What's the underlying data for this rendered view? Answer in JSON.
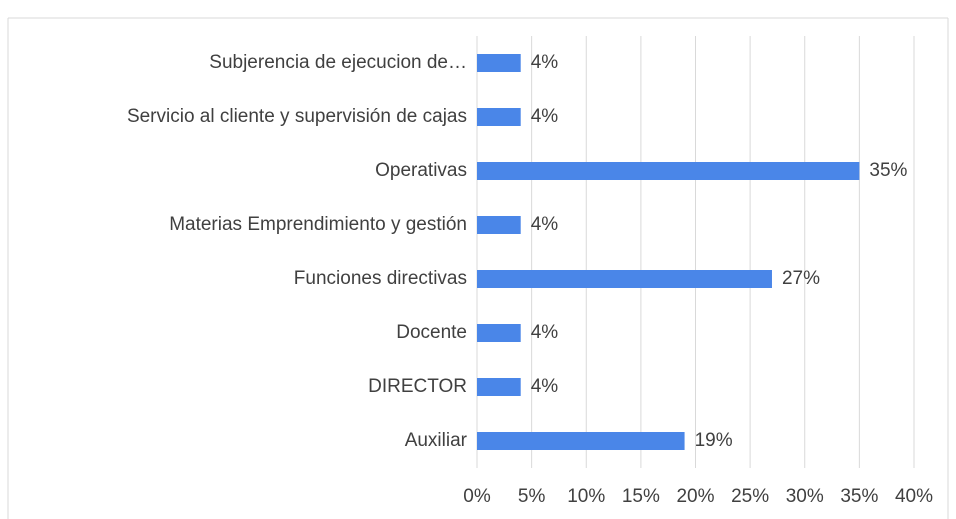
{
  "chart_data": {
    "type": "barh",
    "categories": [
      "Subjerencia de ejecucion de…",
      "Servicio al cliente y supervisión de cajas",
      "Operativas",
      "Materias Emprendimiento y gestión",
      "Funciones directivas",
      "Docente",
      "DIRECTOR",
      "Auxiliar"
    ],
    "values": [
      4,
      4,
      35,
      4,
      27,
      4,
      4,
      19
    ],
    "value_labels": [
      "4%",
      "4%",
      "35%",
      "4%",
      "27%",
      "4%",
      "4%",
      "19%"
    ],
    "color": "#4a86e8",
    "xlim": [
      0,
      40
    ],
    "xticks": [
      {
        "value": 0,
        "label": "0%"
      },
      {
        "value": 5,
        "label": "5%"
      },
      {
        "value": 10,
        "label": "10%"
      },
      {
        "value": 15,
        "label": "15%"
      },
      {
        "value": 20,
        "label": "20%"
      },
      {
        "value": 25,
        "label": "25%"
      },
      {
        "value": 30,
        "label": "30%"
      },
      {
        "value": 35,
        "label": "35%"
      },
      {
        "value": 40,
        "label": "40%"
      }
    ],
    "grid": true
  }
}
